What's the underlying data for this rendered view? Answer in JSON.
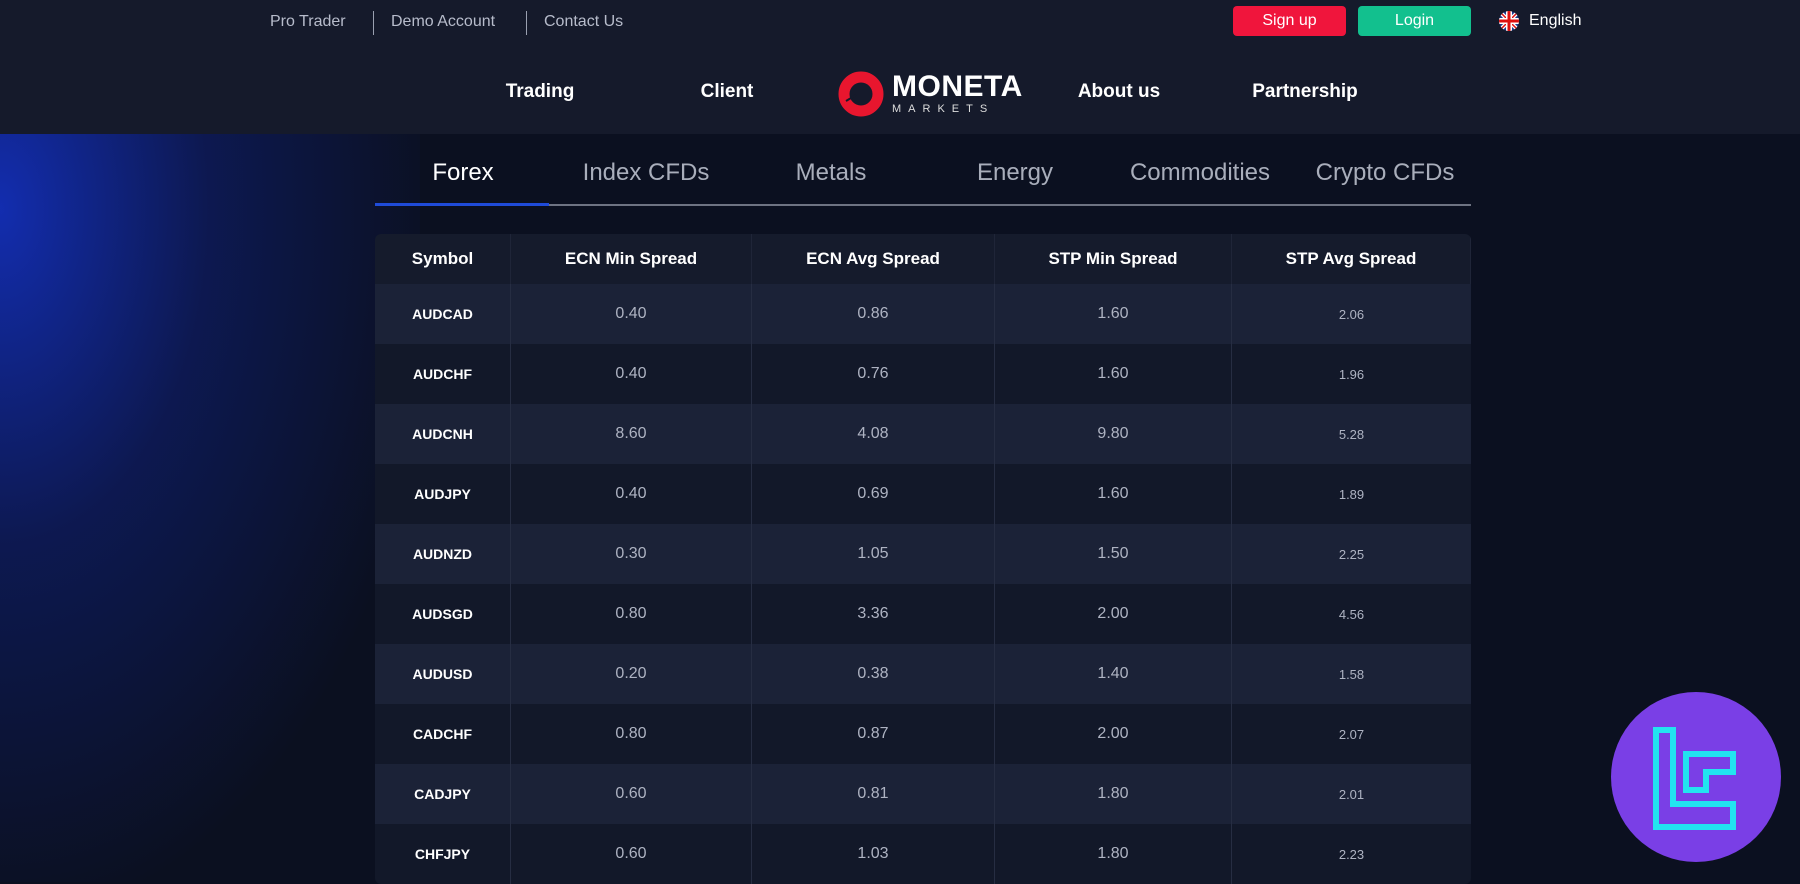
{
  "top_links": [
    "Pro Trader",
    "Demo Account",
    "Contact Us"
  ],
  "buttons": {
    "signup": "Sign up",
    "login": "Login"
  },
  "language": "English",
  "colors": {
    "signup": "#f0153c",
    "login": "#12c08e",
    "accent": "#1f4bd8",
    "logo": "#e8162e",
    "watermark": "#7a3fe6"
  },
  "nav": [
    "Trading",
    "Client",
    "About us",
    "Partnership"
  ],
  "logo": {
    "main": "MONETA",
    "sub": "MARKETS"
  },
  "tabs": [
    "Forex",
    "Index CFDs",
    "Metals",
    "Energy",
    "Commodities",
    "Crypto CFDs"
  ],
  "active_tab": "Forex",
  "table": {
    "headers": [
      "Symbol",
      "ECN Min Spread",
      "ECN Avg Spread",
      "STP Min Spread",
      "STP Avg Spread"
    ],
    "rows": [
      [
        "AUDCAD",
        "0.40",
        "0.86",
        "1.60",
        "2.06"
      ],
      [
        "AUDCHF",
        "0.40",
        "0.76",
        "1.60",
        "1.96"
      ],
      [
        "AUDCNH",
        "8.60",
        "4.08",
        "9.80",
        "5.28"
      ],
      [
        "AUDJPY",
        "0.40",
        "0.69",
        "1.60",
        "1.89"
      ],
      [
        "AUDNZD",
        "0.30",
        "1.05",
        "1.50",
        "2.25"
      ],
      [
        "AUDSGD",
        "0.80",
        "3.36",
        "2.00",
        "4.56"
      ],
      [
        "AUDUSD",
        "0.20",
        "0.38",
        "1.40",
        "1.58"
      ],
      [
        "CADCHF",
        "0.80",
        "0.87",
        "2.00",
        "2.07"
      ],
      [
        "CADJPY",
        "0.60",
        "0.81",
        "1.80",
        "2.01"
      ],
      [
        "CHFJPY",
        "0.60",
        "1.03",
        "1.80",
        "2.23"
      ]
    ]
  }
}
